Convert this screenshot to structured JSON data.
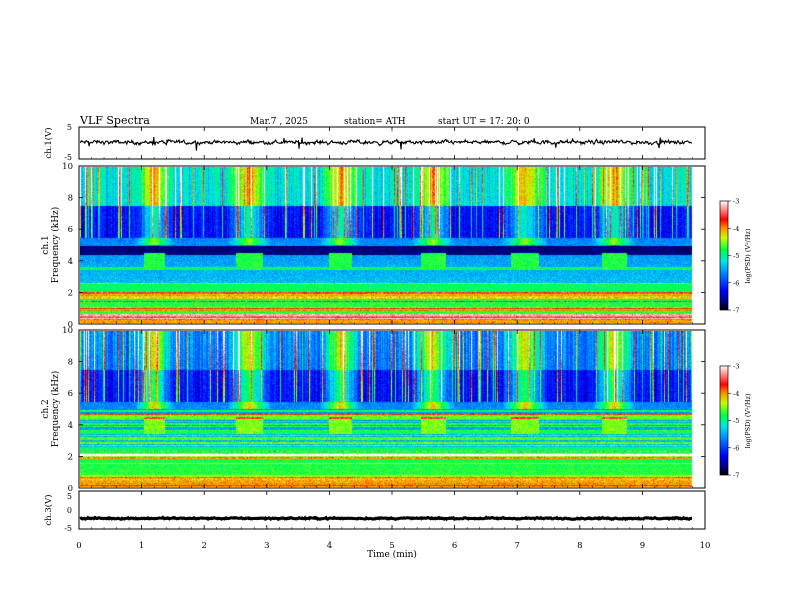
{
  "header": {
    "title": "VLF  Spectra",
    "date": "Mar.7  , 2025",
    "station": "station= ATH",
    "start_ut": "start  UT  =    17: 20: 0"
  },
  "chart_data": [
    {
      "type": "line",
      "panel": "ch1-waveform",
      "ylabel": "ch.1(V)",
      "ylim": [
        -5,
        5
      ],
      "yticks": [
        "5",
        "-5"
      ],
      "xlim": [
        0,
        10
      ],
      "series": [
        {
          "baseline": 0.2,
          "noise_amplitude": 0.5
        }
      ]
    },
    {
      "type": "heatmap",
      "panel": "ch1-spectrogram",
      "ylabel": "ch.1\nFrequency  (kHz)",
      "ylim": [
        0,
        10
      ],
      "yticks": [
        "0",
        "2",
        "4",
        "6",
        "8",
        "10"
      ],
      "xlim": [
        0,
        10
      ],
      "data_end_min": 9.8,
      "tx_bursts_min": [
        [
          1.02,
          1.35
        ],
        [
          2.5,
          2.92
        ],
        [
          3.98,
          4.35
        ],
        [
          5.45,
          5.85
        ],
        [
          6.9,
          7.35
        ],
        [
          8.35,
          8.75
        ]
      ],
      "colorbar": {
        "label": "log(PSD) (V²/Hz)",
        "ticks": [
          "-3",
          "-4",
          "-5",
          "-6",
          "-7"
        ],
        "range": [
          -7,
          -3
        ]
      }
    },
    {
      "type": "heatmap",
      "panel": "ch2-spectrogram",
      "ylabel": "ch.2\nFrequency  (kHz)",
      "ylim": [
        0,
        10
      ],
      "yticks": [
        "0",
        "2",
        "4",
        "6",
        "8",
        "10"
      ],
      "xlim": [
        0,
        10
      ],
      "data_end_min": 9.8,
      "tx_bursts_min": [
        [
          1.02,
          1.35
        ],
        [
          2.5,
          2.92
        ],
        [
          3.98,
          4.35
        ],
        [
          5.45,
          5.85
        ],
        [
          6.9,
          7.35
        ],
        [
          8.35,
          8.75
        ]
      ],
      "colorbar": {
        "label": "log(PSD) (V²/Hz)",
        "ticks": [
          "-3",
          "-4",
          "-5",
          "-6",
          "-7"
        ],
        "range": [
          -7,
          -3
        ]
      }
    },
    {
      "type": "line",
      "panel": "ch3-waveform",
      "ylabel": "ch.3(V)",
      "ylim": [
        -5,
        5
      ],
      "yticks": [
        "5",
        "0",
        "-5"
      ],
      "xlim": [
        0,
        10
      ],
      "xlabel": "Time  (min)",
      "xticks": [
        "0",
        "1",
        "2",
        "3",
        "4",
        "5",
        "6",
        "7",
        "8",
        "9",
        "10"
      ],
      "series": [
        {
          "baseline": -2.2,
          "noise_amplitude": 0.15
        }
      ]
    }
  ]
}
